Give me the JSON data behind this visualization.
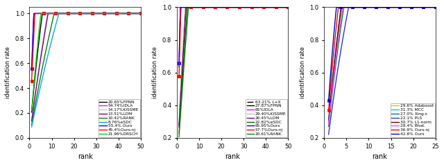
{
  "fig_width": 6.4,
  "fig_height": 2.38,
  "dpi": 100,
  "subplots": [
    {
      "xlabel": "rank",
      "ylabel": "identification rate",
      "xlim": [
        0,
        50
      ],
      "ylim": [
        0,
        1.05
      ],
      "ylim_display": [
        0,
        1.0
      ],
      "xticks": [
        0,
        10,
        20,
        30,
        40,
        50
      ],
      "yticks": [
        0,
        0.2,
        0.4,
        0.6,
        0.8,
        1.0
      ],
      "legend_loc": "lower right",
      "curves": [
        {
          "label": "20.65%FPNN",
          "color": "#000000",
          "linestyle": "-",
          "marker": null,
          "rank1": 0.2065,
          "asym": 0.97,
          "k": 0.08
        },
        {
          "label": "54.74%IDLA",
          "color": "#ff00ff",
          "linestyle": "-",
          "marker": null,
          "rank1": 0.5474,
          "asym": 0.99,
          "k": 0.13
        },
        {
          "label": "14.17%KISSME",
          "color": "#c8c8c8",
          "linestyle": "-",
          "marker": null,
          "rank1": 0.1417,
          "asym": 0.89,
          "k": 0.04
        },
        {
          "label": "13.51%LDM",
          "color": "#800080",
          "linestyle": "-",
          "marker": null,
          "rank1": 0.1351,
          "asym": 0.87,
          "k": 0.035
        },
        {
          "label": "10.42%RANK",
          "color": "#008000",
          "linestyle": "-",
          "marker": null,
          "rank1": 0.1042,
          "asym": 0.7,
          "k": 0.03
        },
        {
          "label": "8.76%eSDC",
          "color": "#00aaff",
          "linestyle": "-",
          "marker": null,
          "rank1": 0.0876,
          "asym": 0.86,
          "k": 0.025
        },
        {
          "label": "55.4% Ours",
          "color": "#0000ff",
          "linestyle": "-",
          "marker": "s",
          "rank1": 0.554,
          "asym": 0.998,
          "k": 0.22
        },
        {
          "label": "45.4%Ours-nj",
          "color": "#ff0000",
          "linestyle": "-",
          "marker": "s",
          "rank1": 0.454,
          "asym": 0.997,
          "k": 0.18
        },
        {
          "label": "21.96%DRSCH",
          "color": "#00cc00",
          "linestyle": "-",
          "marker": null,
          "rank1": 0.2196,
          "asym": 0.75,
          "k": 0.06
        }
      ]
    },
    {
      "xlabel": "rank",
      "ylabel": "identification rate",
      "xlim": [
        0,
        50
      ],
      "ylim": [
        0.2,
        1.0
      ],
      "ylim_display": [
        0.2,
        1.0
      ],
      "xticks": [
        0,
        10,
        20,
        30,
        40,
        50
      ],
      "yticks": [
        0.2,
        0.4,
        0.6,
        0.8,
        1.0
      ],
      "legend_loc": "lower right",
      "curves": [
        {
          "label": "63.21% L+X",
          "color": "#000000",
          "linestyle": "-.",
          "marker": null,
          "rank1": 0.6321,
          "asym": 0.98,
          "k": 0.12
        },
        {
          "label": "27.87%FPNN",
          "color": "#000000",
          "linestyle": "-",
          "marker": null,
          "rank1": 0.2787,
          "asym": 0.99,
          "k": 0.07
        },
        {
          "label": "65%IDLA",
          "color": "#ff00ff",
          "linestyle": "-",
          "marker": null,
          "rank1": 0.65,
          "asym": 0.999,
          "k": 0.2
        },
        {
          "label": "29.40%KISSME",
          "color": "#c0c0c0",
          "linestyle": "-",
          "marker": null,
          "rank1": 0.294,
          "asym": 0.98,
          "k": 0.07
        },
        {
          "label": "26.45%LDM",
          "color": "#800080",
          "linestyle": "-",
          "marker": null,
          "rank1": 0.2645,
          "asym": 0.98,
          "k": 0.065
        },
        {
          "label": "22.82%eSDC",
          "color": "#006400",
          "linestyle": "-",
          "marker": null,
          "rank1": 0.2282,
          "asym": 0.92,
          "k": 0.04
        },
        {
          "label": "65.95%Ours",
          "color": "#0000ff",
          "linestyle": "-",
          "marker": "s",
          "rank1": 0.6595,
          "asym": 0.999,
          "k": 0.25
        },
        {
          "label": "57.7%Ours-nj",
          "color": "#ff0000",
          "linestyle": "-",
          "marker": "s",
          "rank1": 0.577,
          "asym": 0.999,
          "k": 0.2
        },
        {
          "label": "20.61%RANK",
          "color": "#008800",
          "linestyle": "-",
          "marker": null,
          "rank1": 0.2061,
          "asym": 0.9,
          "k": 0.035
        }
      ]
    },
    {
      "xlabel": "rank",
      "ylabel": "identification rate",
      "xlim": [
        0,
        25
      ],
      "ylim": [
        0.2,
        1.0
      ],
      "ylim_display": [
        0.2,
        1.0
      ],
      "xticks": [
        0,
        5,
        10,
        15,
        20,
        25
      ],
      "yticks": [
        0.2,
        0.4,
        0.6,
        0.8,
        1.0
      ],
      "legend_loc": "lower right",
      "curves": [
        {
          "label": "29.6% Adaboost",
          "color": "#cccc00",
          "linestyle": "-",
          "marker": null,
          "rank1": 0.296,
          "asym": 0.88,
          "k": 0.12
        },
        {
          "label": "31.3% MCC",
          "color": "#00cccc",
          "linestyle": "-",
          "marker": null,
          "rank1": 0.313,
          "asym": 0.9,
          "k": 0.13
        },
        {
          "label": "27.0% Xing.s",
          "color": "#008080",
          "linestyle": "-",
          "marker": null,
          "rank1": 0.27,
          "asym": 0.88,
          "k": 0.11
        },
        {
          "label": "22.1% PLS",
          "color": "#3333cc",
          "linestyle": "-",
          "marker": null,
          "rank1": 0.221,
          "asym": 0.87,
          "k": 0.09
        },
        {
          "label": "30.7% L1-norm",
          "color": "#660000",
          "linestyle": "-",
          "marker": null,
          "rank1": 0.307,
          "asym": 0.87,
          "k": 0.12
        },
        {
          "label": "28.4% Bhat.",
          "color": "#ff44ff",
          "linestyle": "-",
          "marker": null,
          "rank1": 0.284,
          "asym": 0.87,
          "k": 0.115
        },
        {
          "label": "36.9% Ours-nj",
          "color": "#ff0000",
          "linestyle": "-",
          "marker": "s",
          "rank1": 0.369,
          "asym": 0.93,
          "k": 0.16
        },
        {
          "label": "42.8% Ours",
          "color": "#0000cc",
          "linestyle": "-",
          "marker": "s",
          "rank1": 0.428,
          "asym": 0.95,
          "k": 0.2
        }
      ]
    }
  ]
}
